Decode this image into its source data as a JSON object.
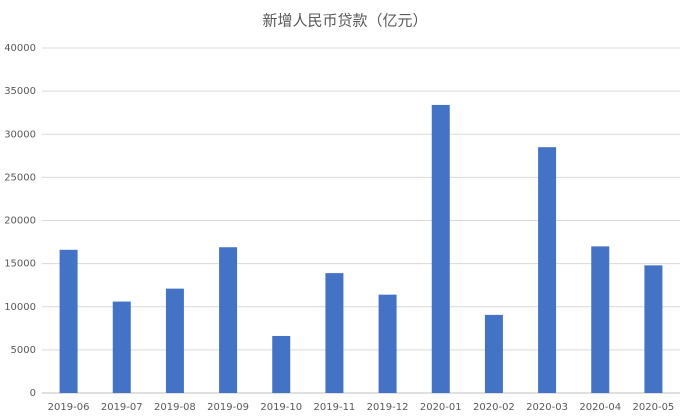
{
  "chart_data": {
    "type": "bar",
    "title": "新增人民币贷款（亿元）",
    "categories": [
      "2019-06",
      "2019-07",
      "2019-08",
      "2019-09",
      "2019-10",
      "2019-11",
      "2019-12",
      "2020-01",
      "2020-02",
      "2020-03",
      "2020-04",
      "2020-05"
    ],
    "values": [
      16600,
      10600,
      12100,
      16900,
      6613,
      13900,
      11400,
      33400,
      9057,
      28500,
      17000,
      14800
    ],
    "color": "#4472c4",
    "ylim": [
      0,
      40000
    ],
    "yticks": [
      0,
      5000,
      10000,
      15000,
      20000,
      25000,
      30000,
      35000,
      40000
    ],
    "grid": true
  }
}
